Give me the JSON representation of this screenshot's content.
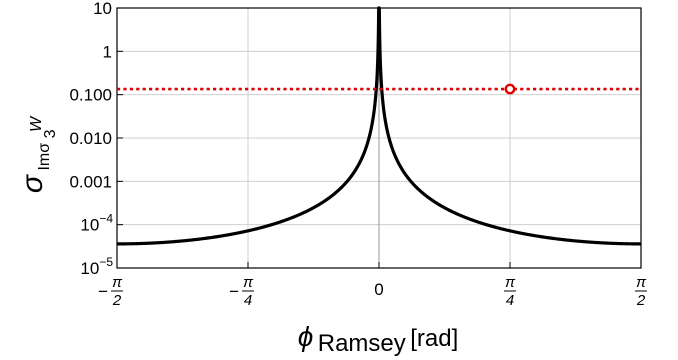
{
  "chart_data": {
    "type": "line",
    "yscale": "log",
    "ylim": [
      1e-05,
      10
    ],
    "xlim": [
      -1.5708,
      1.5708
    ],
    "xticks": [
      {
        "value": -1.5708,
        "sign": "−",
        "num": "π",
        "den": "2"
      },
      {
        "value": -0.7854,
        "sign": "−",
        "num": "π",
        "den": "4"
      },
      {
        "value": 0,
        "plain": "0"
      },
      {
        "value": 0.7854,
        "sign": "",
        "num": "π",
        "den": "4"
      },
      {
        "value": 1.5708,
        "sign": "",
        "num": "π",
        "den": "2"
      }
    ],
    "yticks": [
      {
        "value": 10,
        "label": "10"
      },
      {
        "value": 1,
        "label": "1"
      },
      {
        "value": 0.1,
        "label": "0.100"
      },
      {
        "value": 0.01,
        "label": "0.010"
      },
      {
        "value": 0.001,
        "label": "0.001"
      },
      {
        "value": 0.0001,
        "base": "10",
        "exp": "−4"
      },
      {
        "value": 1e-05,
        "base": "10",
        "exp": "−5"
      }
    ],
    "xlabel": {
      "symbol": "ϕ",
      "sub": "Ramsey",
      "rest": " [rad]"
    },
    "ylabel": {
      "symbol": "σ",
      "sub": "Imσ",
      "sub_sub": "3",
      "sub_sup": "W"
    },
    "grid": true,
    "series": [
      {
        "color": "#000000",
        "style": "solid",
        "model": {
          "min_value": 3.6e-05,
          "exponent": 2
        }
      },
      {
        "color": "#e00000",
        "style": "dotted",
        "constant": 0.135
      }
    ],
    "marker": {
      "x": 0.7854,
      "y": 0.135,
      "color": "#e00000",
      "shape": "open-circle"
    }
  }
}
